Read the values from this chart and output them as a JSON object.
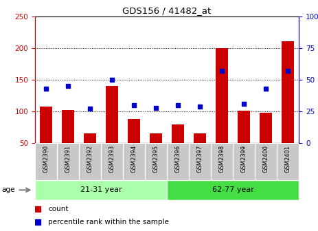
{
  "title": "GDS156 / 41482_at",
  "samples": [
    "GSM2390",
    "GSM2391",
    "GSM2392",
    "GSM2393",
    "GSM2394",
    "GSM2395",
    "GSM2396",
    "GSM2397",
    "GSM2398",
    "GSM2399",
    "GSM2400",
    "GSM2401"
  ],
  "counts": [
    108,
    102,
    65,
    140,
    88,
    65,
    80,
    65,
    200,
    101,
    98,
    210
  ],
  "percentiles": [
    43,
    45,
    27,
    50,
    30,
    28,
    30,
    29,
    57,
    31,
    43,
    57
  ],
  "groups": [
    {
      "label": "21-31 year",
      "start": 0,
      "end": 6,
      "color": "#90EE90"
    },
    {
      "label": "62-77 year",
      "start": 6,
      "end": 12,
      "color": "#32CD32"
    }
  ],
  "ylim_left": [
    50,
    250
  ],
  "ylim_right": [
    0,
    100
  ],
  "yticks_left": [
    50,
    100,
    150,
    200,
    250
  ],
  "yticks_right": [
    0,
    25,
    50,
    75,
    100
  ],
  "bar_color": "#CC0000",
  "dot_color": "#0000CC",
  "tick_color_left": "#CC0000",
  "tick_color_right": "#0000BB",
  "sample_bg": "#C8C8C8",
  "age_label": "age",
  "legend_count": "count",
  "legend_percentile": "percentile rank within the sample",
  "group1_color": "#AAFFAA",
  "group2_color": "#44DD44"
}
